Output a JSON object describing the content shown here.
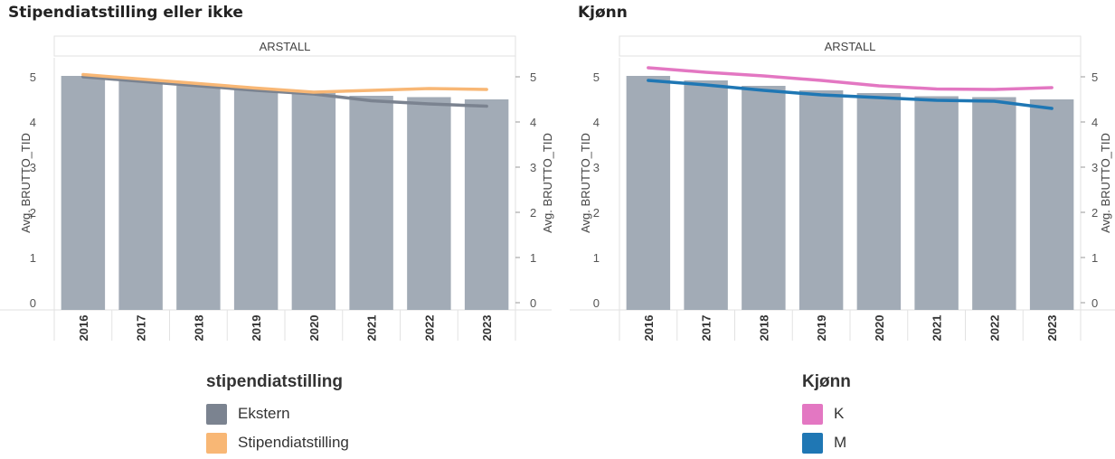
{
  "panels": [
    {
      "title": "Stipendiatstilling eller ikke",
      "legend": {
        "title": "stipendiatstilling",
        "items": [
          {
            "label": "Ekstern",
            "color": "#7b8390"
          },
          {
            "label": "Stipendiatstilling",
            "color": "#f8b775"
          }
        ]
      }
    },
    {
      "title": "Kjønn",
      "legend": {
        "title": "Kjønn",
        "items": [
          {
            "label": "K",
            "color": "#e377c2"
          },
          {
            "label": "M",
            "color": "#1f77b4"
          }
        ]
      }
    }
  ],
  "chart_data": [
    {
      "type": "bar",
      "title": "Stipendiatstilling eller ikke",
      "header": "ARSTALL",
      "categories": [
        "2016",
        "2017",
        "2018",
        "2019",
        "2020",
        "2021",
        "2022",
        "2023"
      ],
      "ylabel_left": "Avg. BRUTTO_TID",
      "ylabel_right": "Avg. BRUTTO_TID",
      "ylim": [
        0,
        5.3
      ],
      "yticks": [
        0,
        1,
        2,
        3,
        4,
        5
      ],
      "bars": {
        "color": "#a2abb6",
        "values": [
          5.02,
          4.9,
          4.8,
          4.72,
          4.64,
          4.58,
          4.55,
          4.5
        ]
      },
      "series": [
        {
          "name": "Ekstern",
          "color": "#7b8390",
          "values": [
            5.0,
            4.9,
            4.8,
            4.7,
            4.62,
            4.47,
            4.4,
            4.35
          ]
        },
        {
          "name": "Stipendiatstilling",
          "color": "#f8b775",
          "values": [
            5.05,
            4.95,
            4.85,
            4.75,
            4.66,
            4.7,
            4.74,
            4.72
          ]
        }
      ],
      "legend_title": "stipendiatstilling",
      "legend_position": "bottom"
    },
    {
      "type": "bar",
      "title": "Kjønn",
      "header": "ARSTALL",
      "categories": [
        "2016",
        "2017",
        "2018",
        "2019",
        "2020",
        "2021",
        "2022",
        "2023"
      ],
      "ylabel_left": "Avg. BRUTTO_TID",
      "ylabel_right": "Avg. BRUTTO_TID",
      "ylim": [
        0,
        5.3
      ],
      "yticks": [
        0,
        1,
        2,
        3,
        4,
        5
      ],
      "bars": {
        "color": "#a2abb6",
        "values": [
          5.02,
          4.92,
          4.8,
          4.7,
          4.64,
          4.57,
          4.55,
          4.5
        ]
      },
      "series": [
        {
          "name": "K",
          "color": "#e377c2",
          "values": [
            5.2,
            5.1,
            5.02,
            4.92,
            4.8,
            4.73,
            4.72,
            4.76
          ]
        },
        {
          "name": "M",
          "color": "#1f77b4",
          "values": [
            4.92,
            4.82,
            4.7,
            4.6,
            4.54,
            4.48,
            4.46,
            4.3
          ]
        }
      ],
      "legend_title": "Kjønn",
      "legend_position": "bottom"
    }
  ]
}
